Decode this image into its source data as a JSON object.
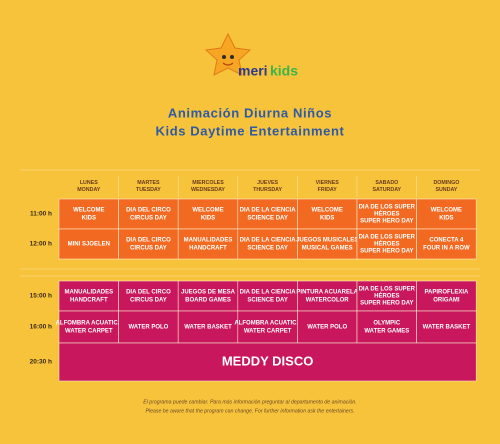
{
  "logo": {
    "word": "meri",
    "kids": "kids"
  },
  "title": [
    "Animación Diurna Niños",
    "Kids Daytime Entertainment"
  ],
  "days": [
    [
      "LUNES",
      "MONDAY"
    ],
    [
      "MARTES",
      "TUESDAY"
    ],
    [
      "MIERCOLES",
      "WEDNESDAY"
    ],
    [
      "JUEVES",
      "THURSDAY"
    ],
    [
      "VIERNES",
      "FRIDAY"
    ],
    [
      "SABADO",
      "SATURDAY"
    ],
    [
      "DOMINGO",
      "SUNDAY"
    ]
  ],
  "rows": [
    {
      "time": "11:00 h",
      "cells": [
        [
          "WELCOME",
          "KIDS"
        ],
        [
          "DIA DEL CIRCO",
          "CIRCUS DAY"
        ],
        [
          "WELCOME",
          "KIDS"
        ],
        [
          "DIA DE LA CIENCIA",
          "SCIENCE DAY"
        ],
        [
          "WELCOME",
          "KIDS"
        ],
        [
          "DIA DE LOS SUPER",
          "HÉROES",
          "SUPER HERO DAY"
        ],
        [
          "WELCOME",
          "KIDS"
        ]
      ]
    },
    {
      "time": "12:00 h",
      "cells": [
        [
          "MINI SJOELEN"
        ],
        [
          "DIA DEL CIRCO",
          "CIRCUS DAY"
        ],
        [
          "MANUALIDADES",
          "HANDCRAFT"
        ],
        [
          "DIA DE LA CIENCIA",
          "SCIENCE DAY"
        ],
        [
          "JUEGOS MUSICALES",
          "MUSICAL GAMES"
        ],
        [
          "DIA DE LOS SUPER",
          "HÉROES",
          "SUPER HERO DAY"
        ],
        [
          "CONECTA 4",
          "FOUR IN A ROW"
        ]
      ]
    },
    {
      "time": "15:00 h",
      "cells": [
        [
          "MANUALIDADES",
          "HANDCRAFT"
        ],
        [
          "DIA DEL CIRCO",
          "CIRCUS DAY"
        ],
        [
          "JUEGOS DE MESA",
          "BOARD GAMES"
        ],
        [
          "DIA DE LA CIENCIA",
          "SCIENCE DAY"
        ],
        [
          "PINTURA ACUARELA",
          "WATERCOLOR"
        ],
        [
          "DIA DE LOS SUPER",
          "HÉROES",
          "SUPER HERO DAY"
        ],
        [
          "PAPIROFLEXIA",
          "ORIGAMI"
        ]
      ]
    },
    {
      "time": "16:00 h",
      "cells": [
        [
          "ALFOMBRA ACUATICA",
          "WATER CARPET"
        ],
        [
          "WATER POLO"
        ],
        [
          "WATER BASKET"
        ],
        [
          "ALFOMBRA ACUATICA",
          "WATER CARPET"
        ],
        [
          "WATER POLO"
        ],
        [
          "OLYMPIC",
          "WATER GAMES"
        ],
        [
          "WATER BASKET"
        ]
      ]
    },
    {
      "time": "20:30 h",
      "cells": [
        [
          "MEDDY DISCO"
        ]
      ]
    }
  ],
  "footer": [
    "El programa puede cambiar. Para más información preguntar  al departamento de animación.",
    "Please be aware that the program can change. For further information ask the entertainers."
  ]
}
